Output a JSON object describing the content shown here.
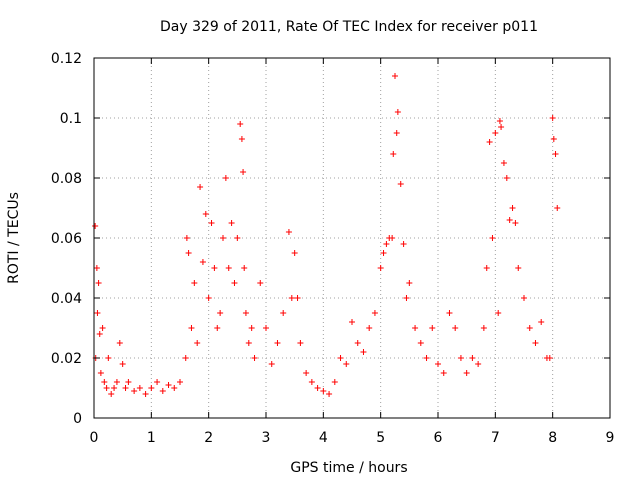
{
  "chart_data": {
    "type": "scatter",
    "title": "Day 329 of 2011, Rate Of TEC Index for receiver p011",
    "xlabel": "GPS time / hours",
    "ylabel": "ROTI / TECUs",
    "xlim": [
      0,
      9
    ],
    "ylim": [
      0,
      0.12
    ],
    "x_ticks": [
      "0",
      "1",
      "2",
      "3",
      "4",
      "5",
      "6",
      "7",
      "8",
      "9"
    ],
    "y_ticks": [
      "0",
      "0.02",
      "0.04",
      "0.06",
      "0.08",
      "0.1",
      "0.12"
    ],
    "grid": true,
    "marker": "+",
    "color": "#ff0000",
    "series": [
      {
        "name": "ROTI",
        "x": [
          0.02,
          0.03,
          0.05,
          0.06,
          0.08,
          0.1,
          0.12,
          0.15,
          0.18,
          0.22,
          0.25,
          0.3,
          0.35,
          0.4,
          0.45,
          0.5,
          0.55,
          0.6,
          0.7,
          0.8,
          0.9,
          1.0,
          1.1,
          1.2,
          1.3,
          1.4,
          1.5,
          1.6,
          1.62,
          1.65,
          1.7,
          1.75,
          1.8,
          1.85,
          1.9,
          1.95,
          2.0,
          2.05,
          2.1,
          2.15,
          2.2,
          2.25,
          2.3,
          2.35,
          2.4,
          2.45,
          2.5,
          2.55,
          2.58,
          2.6,
          2.62,
          2.65,
          2.7,
          2.75,
          2.8,
          2.9,
          3.0,
          3.1,
          3.2,
          3.3,
          3.4,
          3.45,
          3.5,
          3.55,
          3.6,
          3.7,
          3.8,
          3.9,
          4.0,
          4.1,
          4.2,
          4.3,
          4.4,
          4.5,
          4.6,
          4.7,
          4.8,
          4.9,
          5.0,
          5.05,
          5.1,
          5.15,
          5.2,
          5.22,
          5.25,
          5.28,
          5.3,
          5.35,
          5.4,
          5.45,
          5.5,
          5.6,
          5.7,
          5.8,
          5.9,
          6.0,
          6.1,
          6.2,
          6.3,
          6.4,
          6.5,
          6.6,
          6.7,
          6.8,
          6.85,
          6.9,
          6.95,
          7.0,
          7.05,
          7.08,
          7.1,
          7.15,
          7.2,
          7.25,
          7.3,
          7.35,
          7.4,
          7.5,
          7.6,
          7.7,
          7.8,
          7.9,
          7.95,
          8.0,
          8.02,
          8.05,
          8.08
        ],
        "y": [
          0.064,
          0.02,
          0.05,
          0.035,
          0.045,
          0.028,
          0.015,
          0.03,
          0.012,
          0.01,
          0.02,
          0.008,
          0.01,
          0.012,
          0.025,
          0.018,
          0.01,
          0.012,
          0.009,
          0.01,
          0.008,
          0.01,
          0.012,
          0.009,
          0.011,
          0.01,
          0.012,
          0.02,
          0.06,
          0.055,
          0.03,
          0.045,
          0.025,
          0.077,
          0.052,
          0.068,
          0.04,
          0.065,
          0.05,
          0.03,
          0.035,
          0.06,
          0.08,
          0.05,
          0.065,
          0.045,
          0.06,
          0.098,
          0.093,
          0.082,
          0.05,
          0.035,
          0.025,
          0.03,
          0.02,
          0.045,
          0.03,
          0.018,
          0.025,
          0.035,
          0.062,
          0.04,
          0.055,
          0.04,
          0.025,
          0.015,
          0.012,
          0.01,
          0.009,
          0.008,
          0.012,
          0.02,
          0.018,
          0.032,
          0.025,
          0.022,
          0.03,
          0.035,
          0.05,
          0.055,
          0.058,
          0.06,
          0.06,
          0.088,
          0.114,
          0.095,
          0.102,
          0.078,
          0.058,
          0.04,
          0.045,
          0.03,
          0.025,
          0.02,
          0.03,
          0.018,
          0.015,
          0.035,
          0.03,
          0.02,
          0.015,
          0.02,
          0.018,
          0.03,
          0.05,
          0.092,
          0.06,
          0.095,
          0.035,
          0.099,
          0.097,
          0.085,
          0.08,
          0.066,
          0.07,
          0.065,
          0.05,
          0.04,
          0.03,
          0.025,
          0.032,
          0.02,
          0.02,
          0.1,
          0.093,
          0.088,
          0.07
        ]
      }
    ]
  }
}
